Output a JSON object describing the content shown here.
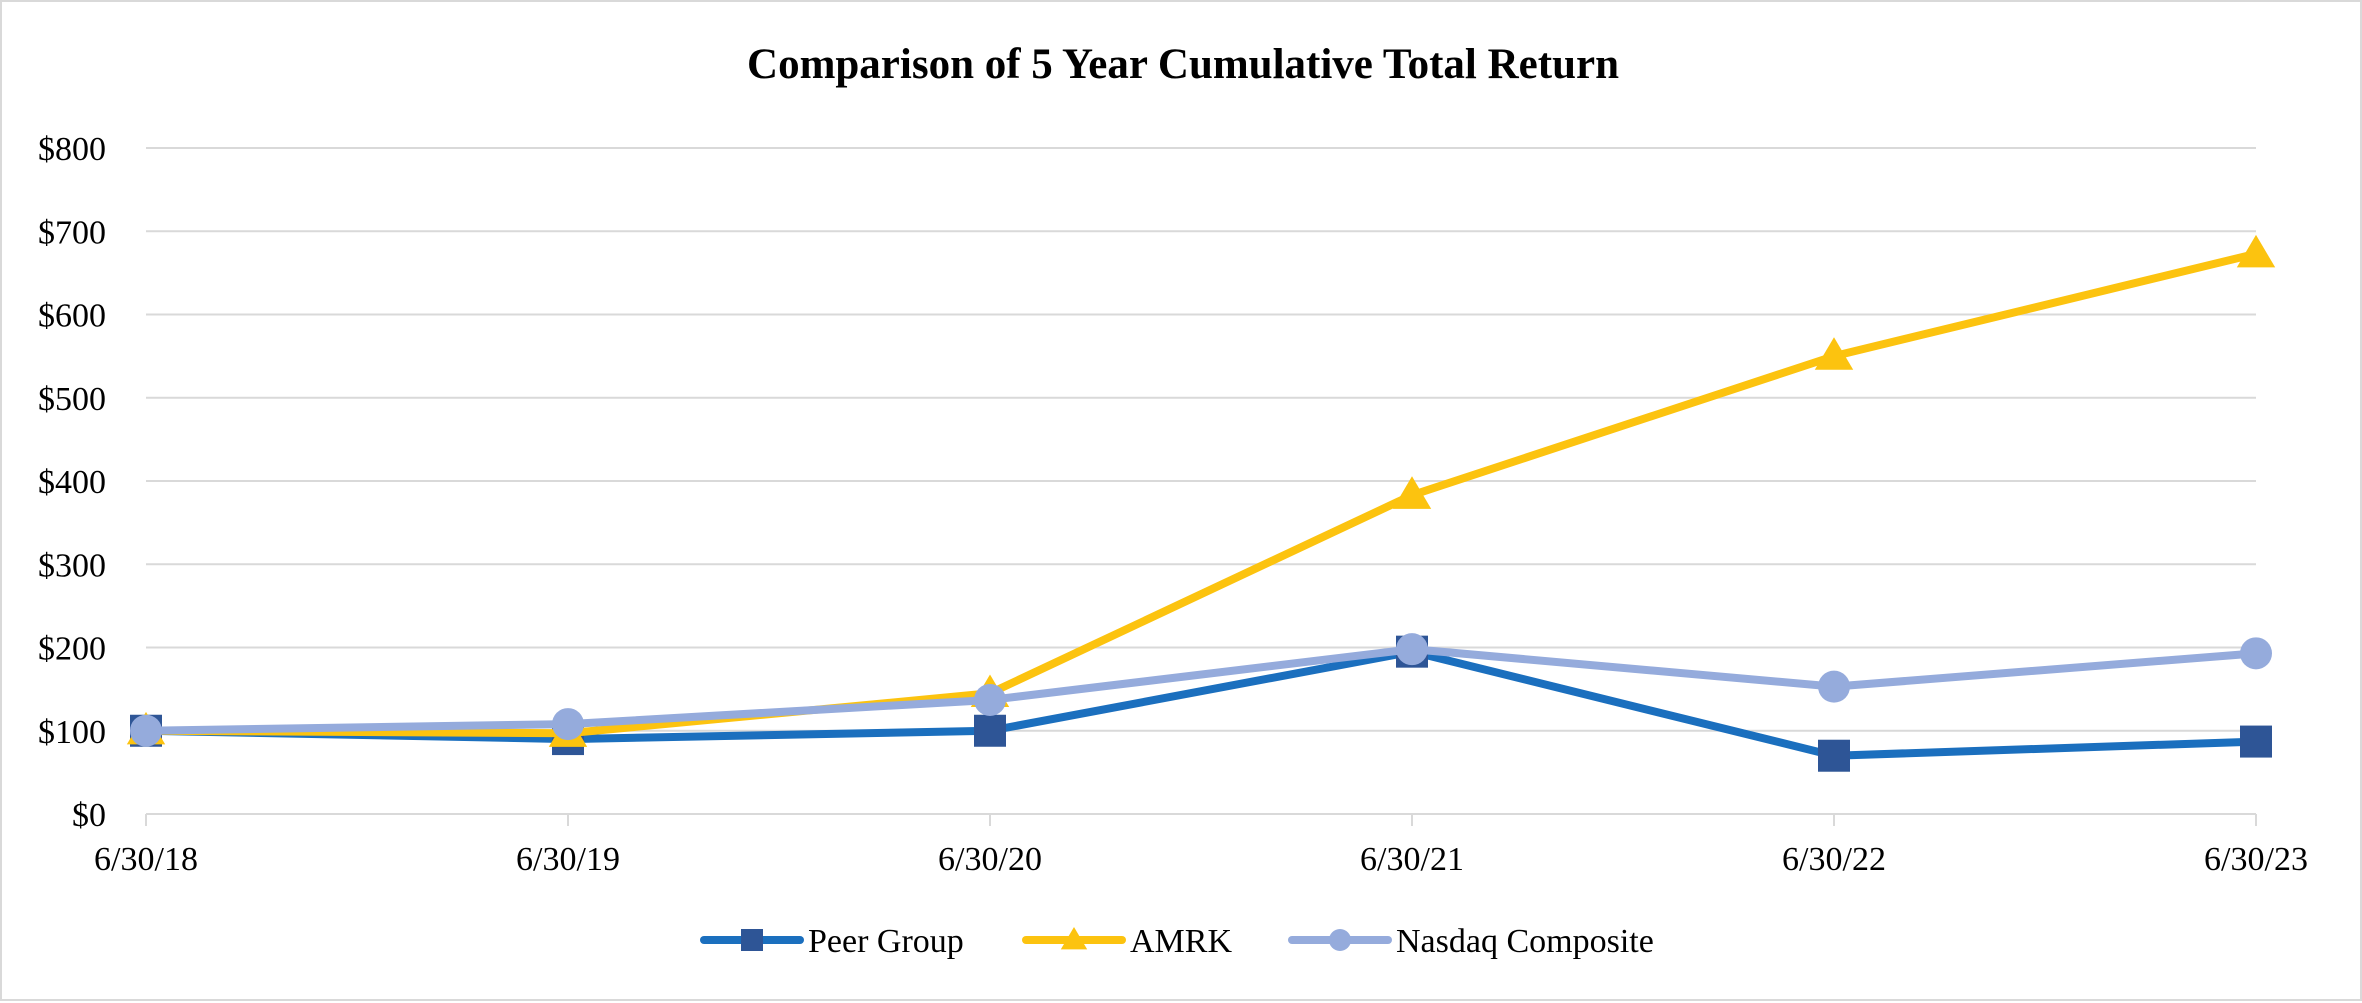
{
  "chart_data": {
    "type": "line",
    "title": "Comparison of 5 Year Cumulative Total Return",
    "xlabel": "",
    "ylabel": "",
    "categories": [
      "6/30/18",
      "6/30/19",
      "6/30/20",
      "6/30/21",
      "6/30/22",
      "6/30/23"
    ],
    "y_tick_labels": [
      "$0",
      "$100",
      "$200",
      "$300",
      "$400",
      "$500",
      "$600",
      "$700",
      "$800"
    ],
    "ylim": [
      0,
      800
    ],
    "y_step": 100,
    "grid": true,
    "legend_position": "bottom",
    "series": [
      {
        "name": "Peer Group",
        "color": "#1b6fbe",
        "marker_color": "#2e5596",
        "marker": "square",
        "values": [
          100,
          90,
          100,
          195,
          70,
          87
        ]
      },
      {
        "name": "AMRK",
        "color": "#fcc30f",
        "marker_color": "#fcc30f",
        "marker": "triangle",
        "values": [
          100,
          97,
          145,
          383,
          550,
          673
        ]
      },
      {
        "name": "Nasdaq Composite",
        "color": "#95abdc",
        "marker_color": "#95abdc",
        "marker": "circle",
        "values": [
          100,
          108,
          137,
          198,
          153,
          193
        ]
      }
    ]
  }
}
